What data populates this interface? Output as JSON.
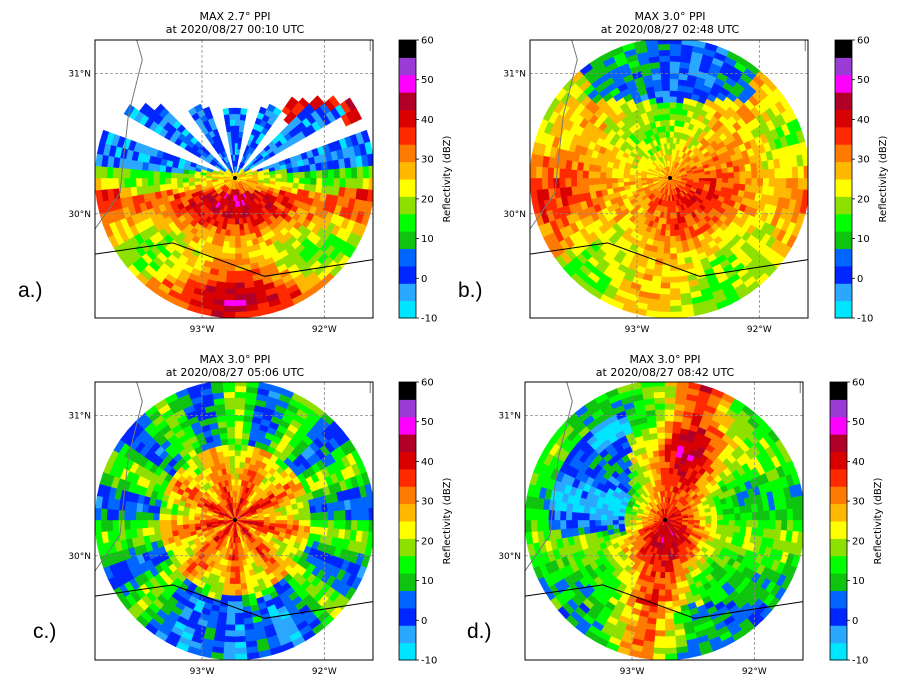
{
  "figure": {
    "colorbar": {
      "label": "Reflectivity (dBZ)",
      "ticks": [
        -10,
        0,
        10,
        20,
        30,
        40,
        50,
        60
      ],
      "colors": [
        "#00e5ff",
        "#2aa8ff",
        "#0026ff",
        "#0066ff",
        "#0fc40f",
        "#00ff00",
        "#8ee000",
        "#ffff00",
        "#ffb800",
        "#ff7a00",
        "#ff2a00",
        "#d80000",
        "#b00028",
        "#ff00ff",
        "#9a3bd6",
        "#000000"
      ]
    },
    "lat_labels": [
      "31°N",
      "30°N"
    ],
    "lon_labels": [
      "93°W",
      "92°W"
    ]
  },
  "chart_data": [
    {
      "type": "heatmap",
      "panel_label": "a.)",
      "title_line1": "MAX  2.7° PPI",
      "title_line2": "at 2020/08/27 00:10 UTC",
      "field": "Reflectivity (dBZ)",
      "colorbar_range": [
        -10,
        60
      ],
      "radar_site": {
        "lon": -92.75,
        "lat": 30.25
      },
      "dominant_reflectivity_dbz": [
        25,
        40
      ],
      "coverage": "southern half of scan with clear-air echoes north of radar"
    },
    {
      "type": "heatmap",
      "panel_label": "b.)",
      "title_line1": "MAX  3.0° PPI",
      "title_line2": "at 2020/08/27 02:48 UTC",
      "field": "Reflectivity (dBZ)",
      "colorbar_range": [
        -10,
        60
      ],
      "radar_site": {
        "lon": -92.75,
        "lat": 30.25
      },
      "dominant_reflectivity_dbz": [
        15,
        40
      ],
      "coverage": "full circle, strongest band south of radar"
    },
    {
      "type": "heatmap",
      "panel_label": "c.)",
      "title_line1": "MAX  3.0° PPI",
      "title_line2": "at 2020/08/27 05:06 UTC",
      "field": "Reflectivity (dBZ)",
      "colorbar_range": [
        -10,
        60
      ],
      "radar_site": {
        "lon": -92.75,
        "lat": 30.25
      },
      "dominant_reflectivity_dbz": [
        10,
        45
      ],
      "coverage": "full circle, eyewall near radar with radial spokes"
    },
    {
      "type": "heatmap",
      "panel_label": "d.)",
      "title_line1": "MAX  3.0° PPI",
      "title_line2": "at 2020/08/27 08:42 UTC",
      "field": "Reflectivity (dBZ)",
      "colorbar_range": [
        -10,
        60
      ],
      "radar_site": {
        "lon": -92.75,
        "lat": 30.25
      },
      "dominant_reflectivity_dbz": [
        10,
        45
      ],
      "coverage": "spiral rainbands wrapping west of radar"
    }
  ]
}
